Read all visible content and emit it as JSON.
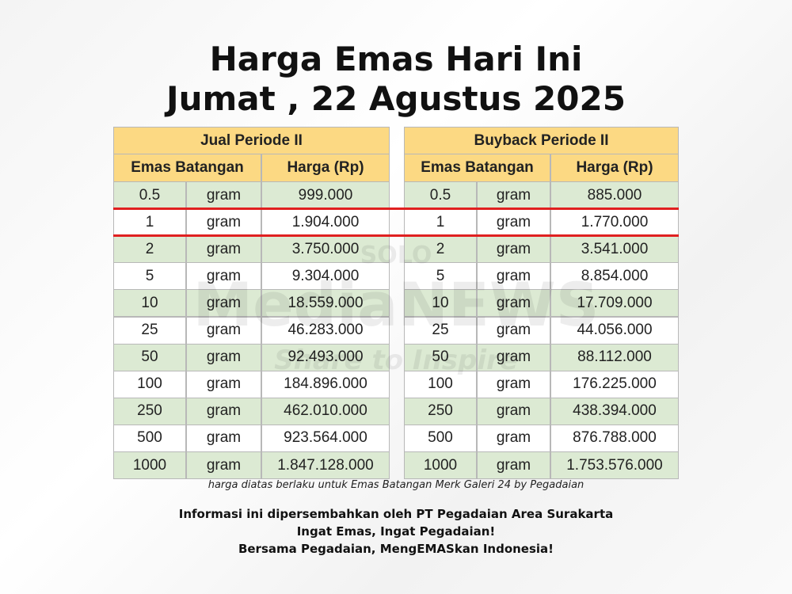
{
  "header": {
    "title_lines": [
      "Harga Emas Hari Ini",
      "Jumat , 22 Agustus 2025"
    ]
  },
  "watermark": {
    "brand_top": "SOLO",
    "brand": "MediaNEWS",
    "tagline": "Share to Inspire"
  },
  "tables": [
    {
      "title": "Jual Periode II",
      "columns": [
        "Emas Batangan",
        "Harga (Rp)"
      ],
      "rows": [
        [
          "0.5",
          "gram",
          "999.000"
        ],
        [
          "1",
          "gram",
          "1.904.000"
        ],
        [
          "2",
          "gram",
          "3.750.000"
        ],
        [
          "5",
          "gram",
          "9.304.000"
        ],
        [
          "10",
          "gram",
          "18.559.000"
        ],
        [
          "25",
          "gram",
          "46.283.000"
        ],
        [
          "50",
          "gram",
          "92.493.000"
        ],
        [
          "100",
          "gram",
          "184.896.000"
        ],
        [
          "250",
          "gram",
          "462.010.000"
        ],
        [
          "500",
          "gram",
          "923.564.000"
        ],
        [
          "1000",
          "gram",
          "1.847.128.000"
        ]
      ]
    },
    {
      "title": "Buyback Periode II",
      "columns": [
        "Emas Batangan",
        "Harga (Rp)"
      ],
      "rows": [
        [
          "0.5",
          "gram",
          "885.000"
        ],
        [
          "1",
          "gram",
          "1.770.000"
        ],
        [
          "2",
          "gram",
          "3.541.000"
        ],
        [
          "5",
          "gram",
          "8.854.000"
        ],
        [
          "10",
          "gram",
          "17.709.000"
        ],
        [
          "25",
          "gram",
          "44.056.000"
        ],
        [
          "50",
          "gram",
          "88.112.000"
        ],
        [
          "100",
          "gram",
          "176.225.000"
        ],
        [
          "250",
          "gram",
          "438.394.000"
        ],
        [
          "500",
          "gram",
          "876.788.000"
        ],
        [
          "1000",
          "gram",
          "1.753.576.000"
        ]
      ]
    }
  ],
  "footnote": "harga diatas berlaku untuk Emas Batangan Merk Galeri 24 by Pegadaian",
  "info_lines": [
    "Informasi ini dipersembahkan oleh PT Pegadaian Area Surakarta",
    "Ingat Emas, Ingat Pegadaian!",
    "Bersama Pegadaian, MengEMASkan Indonesia!"
  ]
}
